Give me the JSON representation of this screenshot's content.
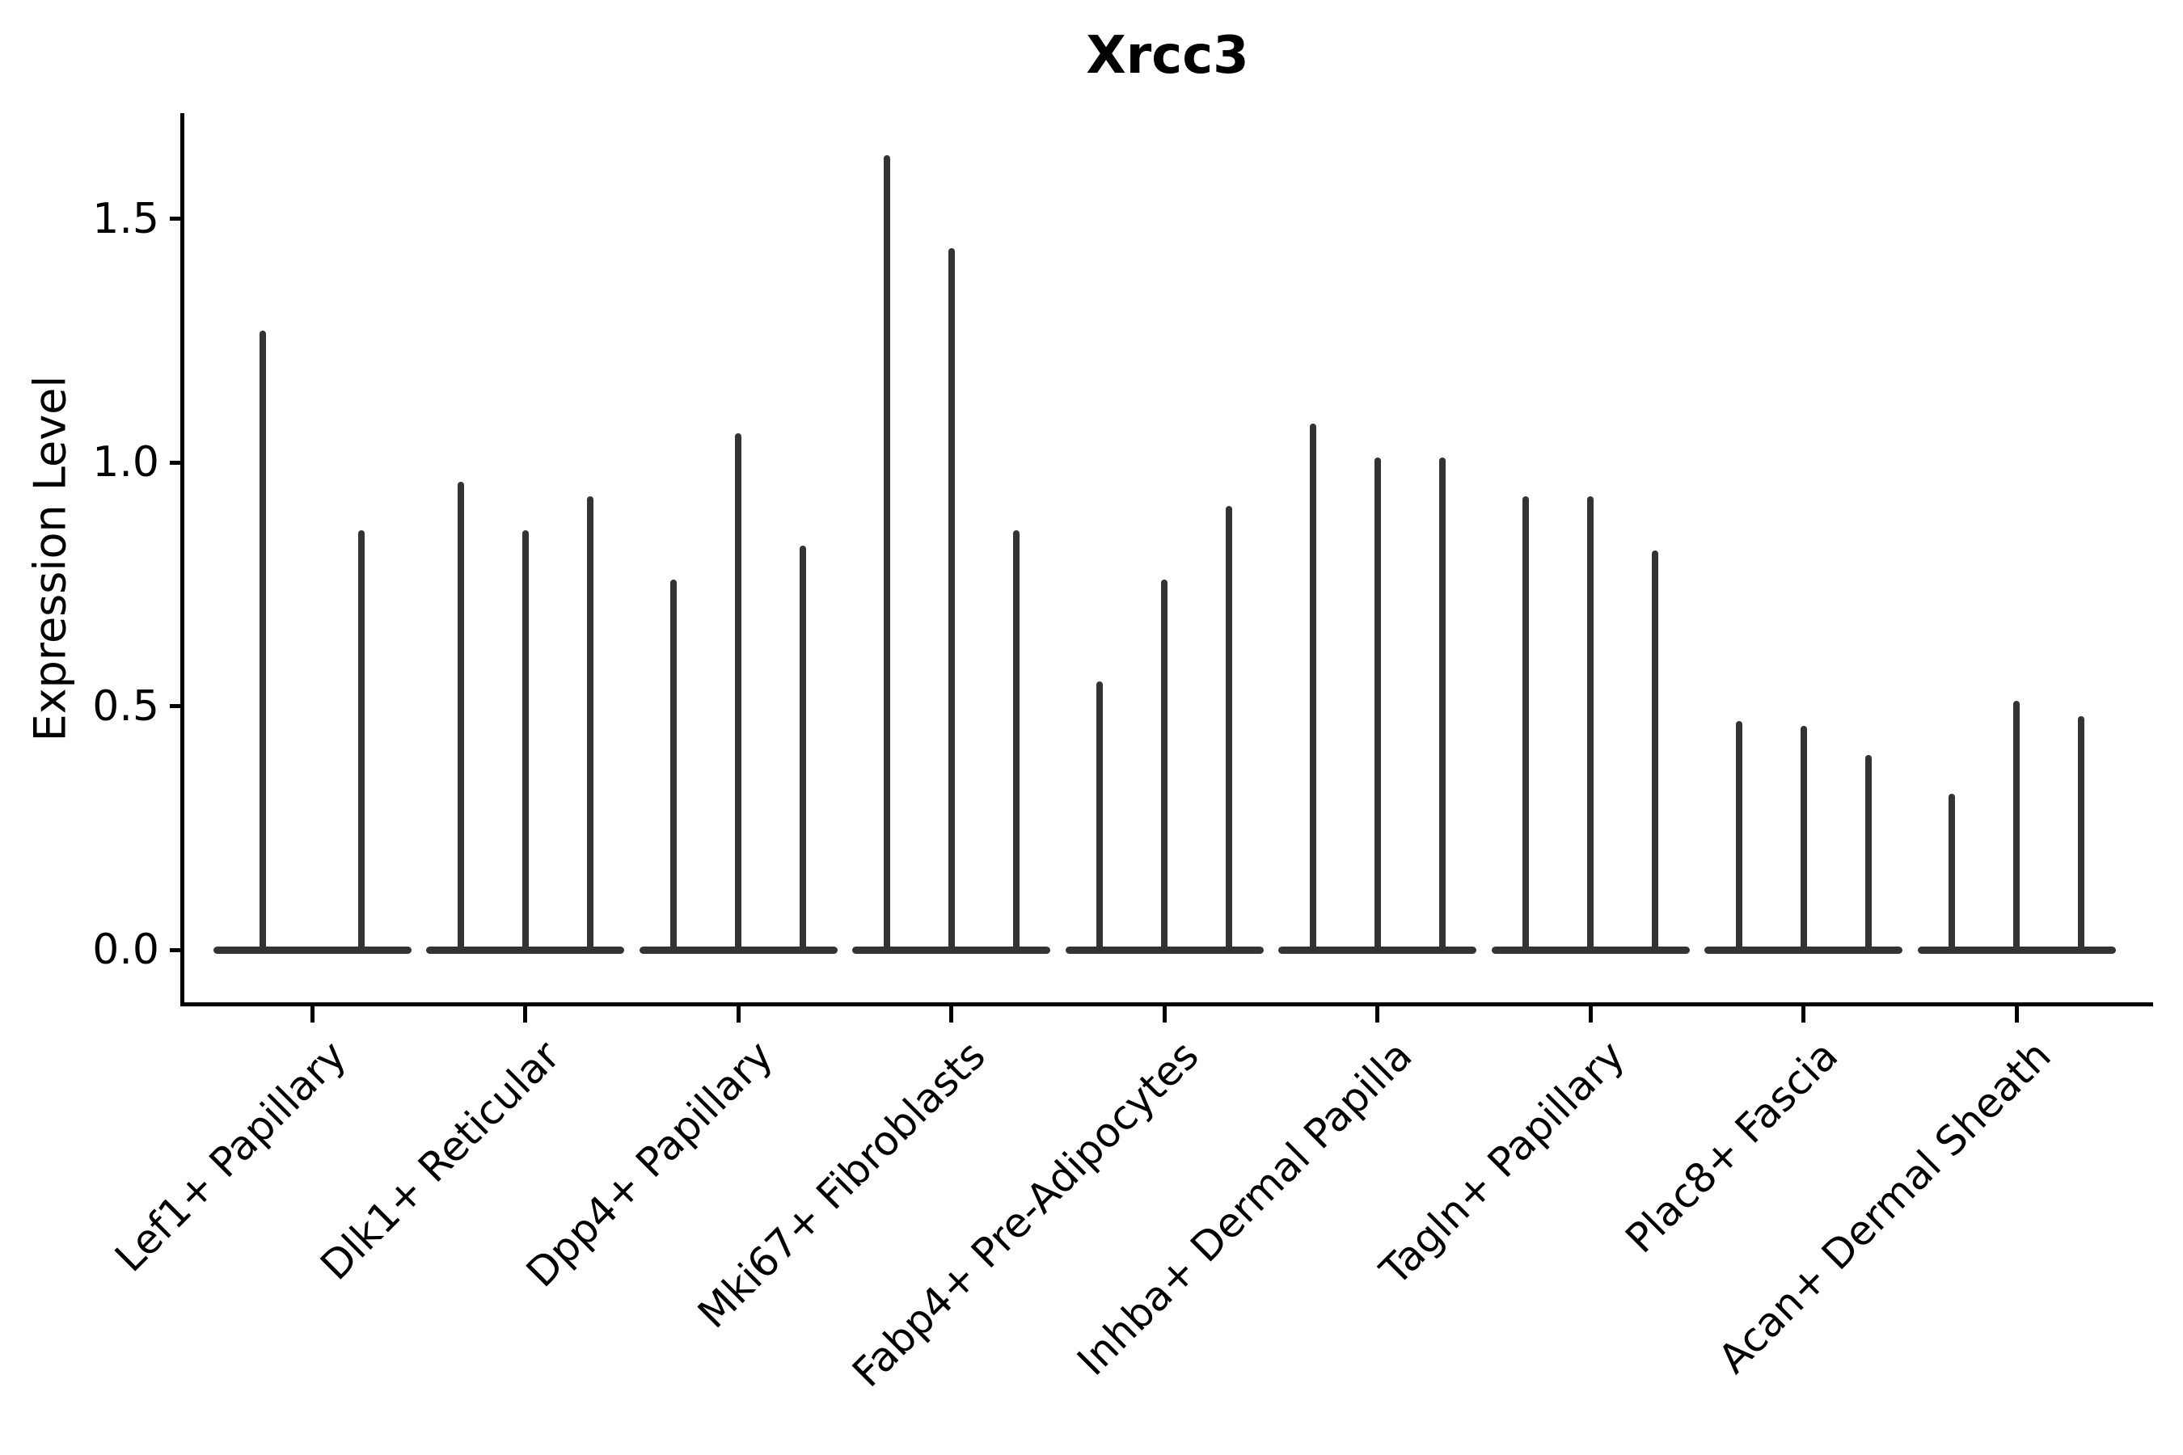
{
  "chart_data": {
    "type": "violin",
    "title": "Xrcc3",
    "xlabel": "",
    "ylabel": "Expression Level",
    "yticks": [
      "0.0",
      "0.5",
      "1.0",
      "1.5"
    ],
    "ytick_values": [
      0.0,
      0.5,
      1.0,
      1.5
    ],
    "ylim": [
      -0.11,
      1.72
    ],
    "grid": false,
    "legend": "none",
    "violin_color": "#333333",
    "axis_color": "#000000",
    "background_color": "#ffffff",
    "categories": [
      "Lef1+ Papillary",
      "Dlk1+ Reticular",
      "Dpp4+ Papillary",
      "Mki67+ Fibroblasts",
      "Fabp4+ Pre-Adipocytes",
      "Inhba+ Dermal Papilla",
      "Tagln+ Papillary",
      "Plac8+ Fascia",
      "Acan+ Dermal Sheath"
    ],
    "groups": [
      {
        "category": "Lef1+ Papillary",
        "violin_max": [
          1.27,
          0.86
        ]
      },
      {
        "category": "Dlk1+ Reticular",
        "violin_max": [
          0.96,
          0.86,
          0.93
        ]
      },
      {
        "category": "Dpp4+ Papillary",
        "violin_max": [
          0.76,
          1.06,
          0.83
        ]
      },
      {
        "category": "Mki67+ Fibroblasts",
        "violin_max": [
          1.63,
          1.44,
          0.86
        ]
      },
      {
        "category": "Fabp4+ Pre-Adipocytes",
        "violin_max": [
          0.55,
          0.76,
          0.91
        ]
      },
      {
        "category": "Inhba+ Dermal Papilla",
        "violin_max": [
          1.08,
          1.01,
          1.01
        ]
      },
      {
        "category": "Tagln+ Papillary",
        "violin_max": [
          0.93,
          0.93,
          0.82
        ]
      },
      {
        "category": "Plac8+ Fascia",
        "violin_max": [
          0.47,
          0.46,
          0.4
        ]
      },
      {
        "category": "Acan+ Dermal Sheath",
        "violin_max": [
          0.32,
          0.51,
          0.48
        ]
      }
    ]
  }
}
